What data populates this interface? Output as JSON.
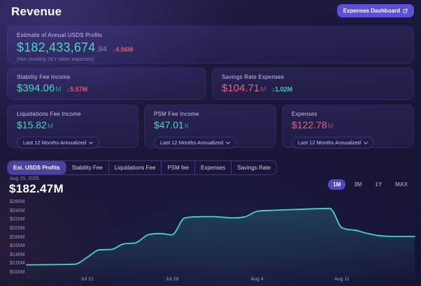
{
  "page": {
    "title": "Revenue"
  },
  "header": {
    "dashboard_button": "Expenses Dashboard"
  },
  "cards": {
    "annual_profits": {
      "label": "Estimate of Annual USDS Profits",
      "value": "$182,433,674",
      "decimals": ".94",
      "delta": "↓4.56M",
      "delta_color": "#e0596e",
      "note": "(Not counting SKY token expenses)"
    },
    "stability_fee": {
      "label": "Stability Fee Income",
      "value": "$394.06",
      "unit": "M",
      "delta": "↓5.57M",
      "delta_color": "#e0596e"
    },
    "savings_rate": {
      "label": "Savings Rate Expenses",
      "value": "$104.71",
      "unit": "M",
      "value_color": "#ee6079",
      "delta": "↓1.02M",
      "delta_color": "#38cdb6"
    },
    "liquidations_fee": {
      "label": "Liquidations Fee Income",
      "value": "$15.82",
      "unit": "M",
      "dropdown": "Last 12 Months Annualized"
    },
    "psm_fee": {
      "label": "PSM Fee Income",
      "value": "$47.01",
      "unit": "K",
      "dropdown": "Last 12 Months Annualized"
    },
    "expenses": {
      "label": "Expenses",
      "value": "$122.78",
      "unit": "M",
      "value_color": "#ee6079",
      "dropdown": "Last 12 Months Annualized"
    }
  },
  "tabs": [
    {
      "label": "Est. USDS Profits",
      "active": true
    },
    {
      "label": "Stability Fee",
      "active": false
    },
    {
      "label": "Liquidations Fee",
      "active": false
    },
    {
      "label": "PSM fee",
      "active": false
    },
    {
      "label": "Expenses",
      "active": false
    },
    {
      "label": "Savings Rate",
      "active": false
    }
  ],
  "chart_header": {
    "date": "Aug 15, 2025",
    "value": "$182.47M"
  },
  "time_ranges": [
    {
      "label": "1M",
      "active": true
    },
    {
      "label": "3M",
      "active": false
    },
    {
      "label": "1Y",
      "active": false
    },
    {
      "label": "MAX",
      "active": false
    }
  ],
  "colors": {
    "teal": "#45d9c4",
    "red": "#ee6079",
    "purple": "#5b50d6"
  },
  "chart_data": {
    "type": "area",
    "title": "Est. USDS Profits, last month (USD millions)",
    "line_color": "#3ed9c4",
    "ylim": [
      100,
      260
    ],
    "y_ticks": [
      260,
      240,
      220,
      200,
      180,
      160,
      140,
      120,
      100
    ],
    "y_tick_prefix": "$",
    "y_tick_suffix": "M",
    "x_ticks": [
      {
        "label": "Jul 21",
        "index": 5
      },
      {
        "label": "Jul 28",
        "index": 12
      },
      {
        "label": "Aug 4",
        "index": 19
      },
      {
        "label": "Aug 11",
        "index": 26
      }
    ],
    "points": [
      {
        "date": "Jul 16",
        "value": 118
      },
      {
        "date": "Jul 17",
        "value": 118.2
      },
      {
        "date": "Jul 18",
        "value": 118.4
      },
      {
        "date": "Jul 19",
        "value": 118.8
      },
      {
        "date": "Jul 20",
        "value": 119.5
      },
      {
        "date": "Jul 21",
        "value": 135
      },
      {
        "date": "Jul 22",
        "value": 152
      },
      {
        "date": "Jul 23",
        "value": 153
      },
      {
        "date": "Jul 24",
        "value": 165.5
      },
      {
        "date": "Jul 25",
        "value": 168
      },
      {
        "date": "Jul 26",
        "value": 186
      },
      {
        "date": "Jul 27",
        "value": 189
      },
      {
        "date": "Jul 28",
        "value": 186
      },
      {
        "date": "Jul 29",
        "value": 224
      },
      {
        "date": "Jul 30",
        "value": 227
      },
      {
        "date": "Jul 31",
        "value": 227.5
      },
      {
        "date": "Aug 1",
        "value": 226.5
      },
      {
        "date": "Aug 2",
        "value": 224.5
      },
      {
        "date": "Aug 3",
        "value": 227
      },
      {
        "date": "Aug 4",
        "value": 239.5
      },
      {
        "date": "Aug 5",
        "value": 241.5
      },
      {
        "date": "Aug 6",
        "value": 242.5
      },
      {
        "date": "Aug 7",
        "value": 243.5
      },
      {
        "date": "Aug 8",
        "value": 244.5
      },
      {
        "date": "Aug 9",
        "value": 245.5
      },
      {
        "date": "Aug 10",
        "value": 246
      },
      {
        "date": "Aug 11",
        "value": 202
      },
      {
        "date": "Aug 12",
        "value": 197
      },
      {
        "date": "Aug 13",
        "value": 190
      },
      {
        "date": "Aug 14",
        "value": 184.5
      },
      {
        "date": "Aug 15",
        "value": 182.47
      },
      {
        "date": "Aug 16",
        "value": 182.4
      },
      {
        "date": "Aug 17",
        "value": 182.4
      }
    ]
  }
}
